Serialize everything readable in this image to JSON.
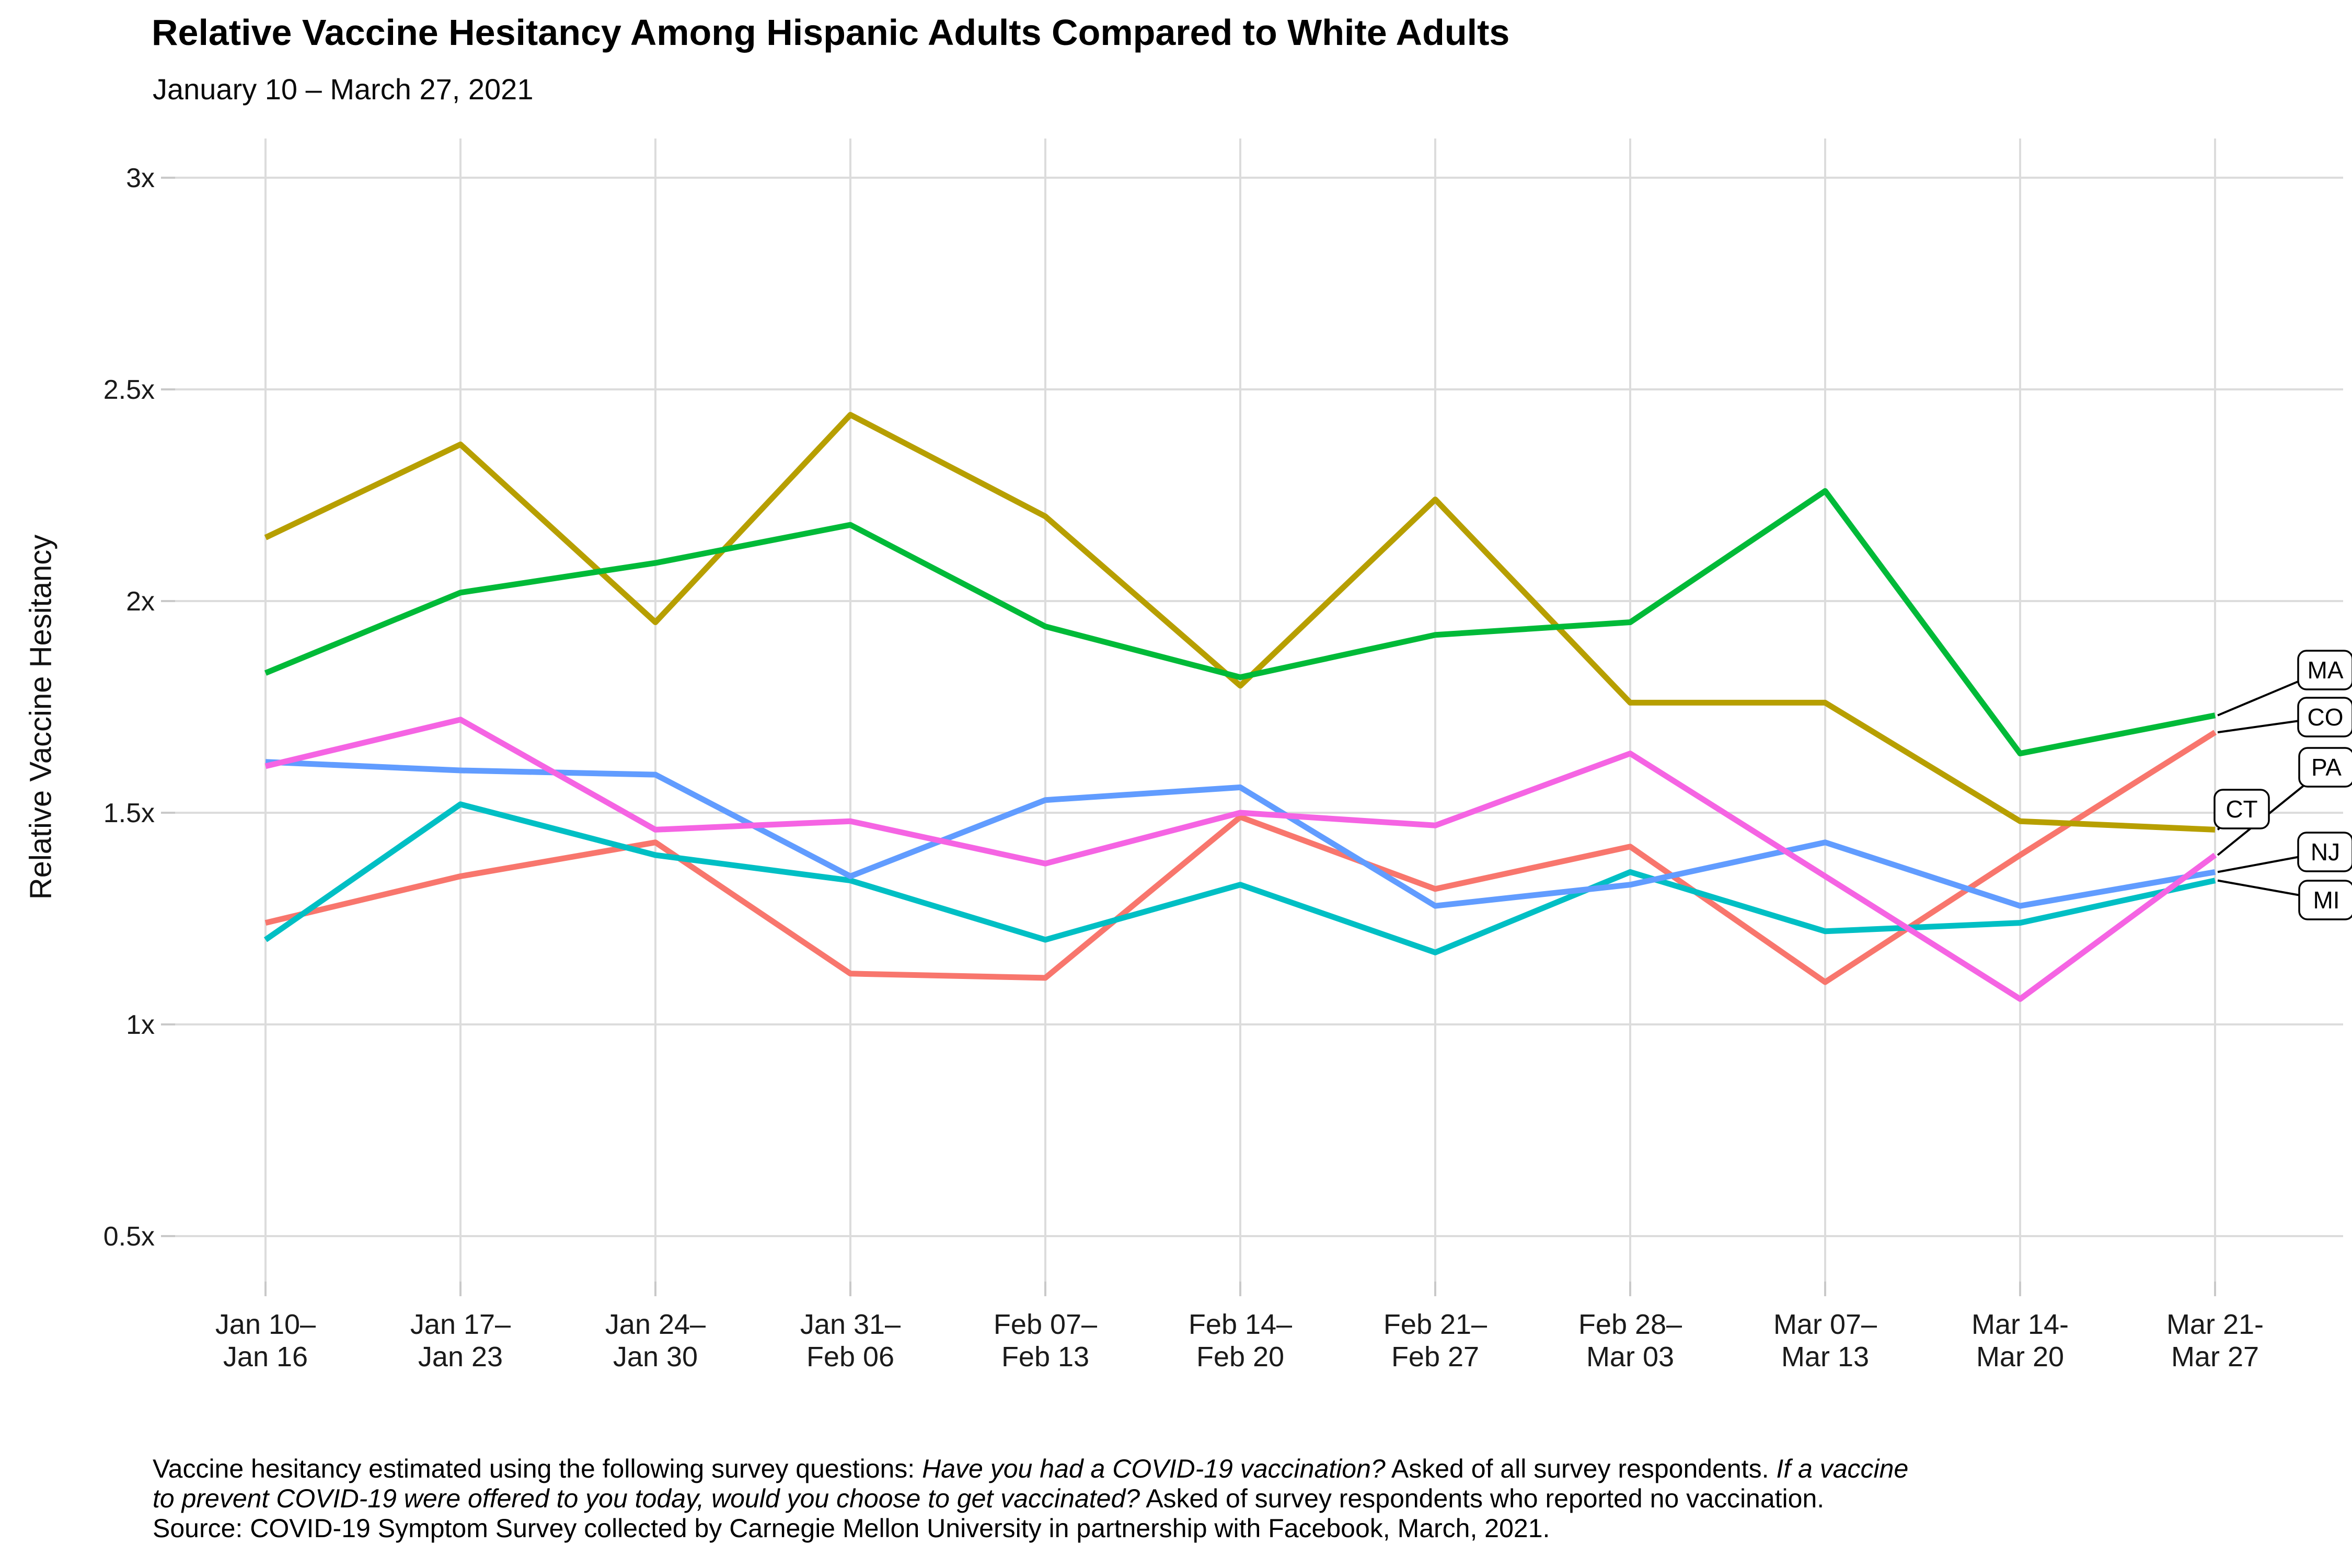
{
  "title": "Relative Vaccine Hesitancy Among Hispanic Adults Compared to White Adults",
  "subtitle": "January 10 – March 27, 2021",
  "y_axis_title": "Relative Vaccine Hesitancy",
  "caption": {
    "line1": [
      {
        "t": "Vaccine hesitancy estimated using the following survey questions: "
      },
      {
        "t": "Have you had a COVID-19 vaccination?"
      },
      {
        "t": " Asked of all survey respondents. "
      },
      {
        "t": "If a vaccine"
      }
    ],
    "line2": [
      {
        "t": "to prevent COVID-19 were offered to you today, would you choose to get vaccinated?"
      },
      {
        "t": " Asked of survey respondents who reported no vaccination."
      }
    ],
    "line3": [
      {
        "t": "Source: COVID-19 Symptom Survey collected by Carnegie Mellon University in partnership with Facebook, March, 2021."
      }
    ]
  },
  "chart_data": {
    "type": "line",
    "title": "Relative Vaccine Hesitancy Among Hispanic Adults Compared to White Adults",
    "subtitle": "January 10 – March 27, 2021",
    "xlabel": "",
    "ylabel": "Relative Vaccine Hesitancy",
    "ylim": [
      0.5,
      3
    ],
    "grid": "on",
    "legend_position": "right-end-labels-with-leader-lines",
    "y_ticks": [
      {
        "value": 3.0,
        "label": "3x"
      },
      {
        "value": 2.5,
        "label": "2.5x"
      },
      {
        "value": 2.0,
        "label": "2x"
      },
      {
        "value": 1.5,
        "label": "1.5x"
      },
      {
        "value": 1.0,
        "label": "1x"
      },
      {
        "value": 0.5,
        "label": "0.5x"
      }
    ],
    "categories": [
      {
        "top": "Jan 10–",
        "bottom": "Jan 16"
      },
      {
        "top": "Jan 17–",
        "bottom": "Jan 23"
      },
      {
        "top": "Jan 24–",
        "bottom": "Jan 30"
      },
      {
        "top": "Jan 31–",
        "bottom": "Feb 06"
      },
      {
        "top": "Feb 07–",
        "bottom": "Feb 13"
      },
      {
        "top": "Feb 14–",
        "bottom": "Feb 20"
      },
      {
        "top": "Feb 21–",
        "bottom": "Feb 27"
      },
      {
        "top": "Feb 28–",
        "bottom": "Mar 03"
      },
      {
        "top": "Mar 07–",
        "bottom": "Mar 13"
      },
      {
        "top": "Mar 14-",
        "bottom": "Mar 20"
      },
      {
        "top": "Mar 21-",
        "bottom": "Mar 27"
      }
    ],
    "series": [
      {
        "name": "CO",
        "color": "#F8766D",
        "values": [
          1.24,
          1.35,
          1.43,
          1.12,
          1.11,
          1.49,
          1.32,
          1.42,
          1.1,
          1.4,
          1.69
        ]
      },
      {
        "name": "CT",
        "color": "#B79F00",
        "values": [
          2.15,
          2.37,
          1.95,
          2.44,
          2.2,
          1.8,
          2.24,
          1.76,
          1.76,
          1.48,
          1.46
        ]
      },
      {
        "name": "MA",
        "color": "#00BA38",
        "values": [
          1.83,
          2.02,
          2.09,
          2.18,
          1.94,
          1.82,
          1.92,
          1.95,
          2.26,
          1.64,
          1.73
        ]
      },
      {
        "name": "MI",
        "color": "#00BFC4",
        "values": [
          1.2,
          1.52,
          1.4,
          1.34,
          1.2,
          1.33,
          1.17,
          1.36,
          1.22,
          1.24,
          1.34
        ]
      },
      {
        "name": "NJ",
        "color": "#619CFF",
        "values": [
          1.62,
          1.6,
          1.59,
          1.35,
          1.53,
          1.56,
          1.28,
          1.33,
          1.43,
          1.28,
          1.36
        ]
      },
      {
        "name": "PA",
        "color": "#F564E3",
        "values": [
          1.61,
          1.72,
          1.46,
          1.48,
          1.38,
          1.5,
          1.47,
          1.64,
          1.35,
          1.06,
          1.4
        ]
      }
    ],
    "colors": {
      "grid": "#dcdcdc",
      "tick": "#c9c9c9",
      "axis_text": "#1a1a1a",
      "label_box_border": "#000000",
      "label_box_fill": "#ffffff",
      "leader_line": "#000000"
    }
  }
}
